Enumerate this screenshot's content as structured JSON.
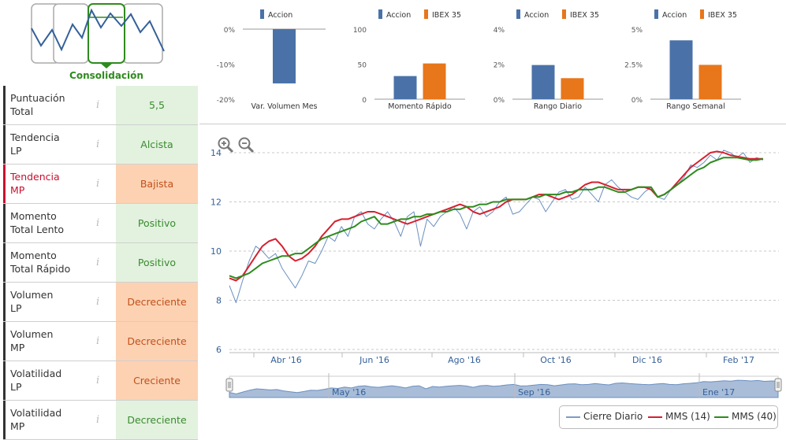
{
  "phase": {
    "label": "Consolidación"
  },
  "indicators": [
    {
      "name_line1": "Puntuación",
      "name_line2": "Total",
      "value": "5,5",
      "status": "green"
    },
    {
      "name_line1": "Tendencia",
      "name_line2": "LP",
      "value": "Alcista",
      "status": "green"
    },
    {
      "name_line1": "Tendencia",
      "name_line2": "MP",
      "value": "Bajista",
      "status": "orange"
    },
    {
      "name_line1": "Momento",
      "name_line2": "Total Lento",
      "value": "Positivo",
      "status": "green"
    },
    {
      "name_line1": "Momento",
      "name_line2": "Total Rápido",
      "value": "Positivo",
      "status": "green"
    },
    {
      "name_line1": "Volumen",
      "name_line2": "LP",
      "value": "Decreciente",
      "status": "orange"
    },
    {
      "name_line1": "Volumen",
      "name_line2": "MP",
      "value": "Decreciente",
      "status": "orange"
    },
    {
      "name_line1": "Volatilidad",
      "name_line2": "LP",
      "value": "Creciente",
      "status": "orange"
    },
    {
      "name_line1": "Volatilidad",
      "name_line2": "MP",
      "value": "Decreciente",
      "status": "green"
    }
  ],
  "info_glyph": "i",
  "colors": {
    "accion": "#4a72a8",
    "ibex": "#e8761a",
    "green": "#2e8b1e",
    "red": "#d62030",
    "line": "#4a72a8"
  },
  "chart_data": [
    {
      "type": "bar",
      "title": "Var. Volumen Mes",
      "legend": [
        "Accion"
      ],
      "yticks": [
        "0%",
        "-10%",
        "-20%"
      ],
      "ylim": [
        -20,
        0
      ],
      "series": [
        {
          "name": "Accion",
          "values": [
            -15.5
          ]
        }
      ]
    },
    {
      "type": "bar",
      "title": "Momento Rápido",
      "legend": [
        "Accion",
        "IBEX 35"
      ],
      "yticks": [
        "100",
        "50",
        "0"
      ],
      "ylim": [
        0,
        100
      ],
      "series": [
        {
          "name": "Accion",
          "values": [
            33
          ]
        },
        {
          "name": "IBEX 35",
          "values": [
            51
          ]
        }
      ]
    },
    {
      "type": "bar",
      "title": "Rango Diario",
      "legend": [
        "Accion",
        "IBEX 35"
      ],
      "yticks": [
        "4%",
        "2%",
        "0%"
      ],
      "ylim": [
        0,
        4
      ],
      "series": [
        {
          "name": "Accion",
          "values": [
            1.95
          ]
        },
        {
          "name": "IBEX 35",
          "values": [
            1.2
          ]
        }
      ]
    },
    {
      "type": "bar",
      "title": "Rango Semanal",
      "legend": [
        "Accion",
        "IBEX 35"
      ],
      "yticks": [
        "5%",
        "2.5%",
        "0%"
      ],
      "ylim": [
        0,
        5
      ],
      "series": [
        {
          "name": "Accion",
          "values": [
            4.2
          ]
        },
        {
          "name": "IBEX 35",
          "values": [
            2.45
          ]
        }
      ]
    },
    {
      "type": "line",
      "ylim": [
        6,
        14
      ],
      "yticks": [
        "14",
        "12",
        "10",
        "8",
        "6"
      ],
      "xticks": [
        "Abr '16",
        "Jun '16",
        "Ago '16",
        "Oct '16",
        "Dic '16",
        "Feb '17"
      ],
      "navigator_labels": [
        "May '16",
        "Sep '16",
        "Ene '17"
      ],
      "legend": [
        "Cierre Diario",
        "MMS (14)",
        "MMS (40)"
      ],
      "series": [
        {
          "name": "Cierre Diario",
          "values": [
            8.6,
            7.9,
            8.8,
            9.6,
            10.2,
            10.0,
            9.7,
            9.9,
            9.3,
            8.9,
            8.5,
            9.0,
            9.6,
            9.5,
            10.0,
            10.6,
            10.4,
            11.0,
            10.6,
            11.4,
            11.6,
            11.1,
            10.9,
            11.3,
            11.6,
            11.2,
            10.6,
            11.4,
            11.6,
            10.2,
            11.3,
            11.0,
            11.4,
            11.6,
            11.8,
            11.5,
            10.9,
            11.6,
            11.8,
            11.4,
            11.6,
            12.0,
            12.2,
            11.5,
            11.6,
            11.9,
            12.2,
            12.1,
            11.6,
            12.0,
            12.4,
            12.5,
            12.1,
            12.2,
            12.6,
            12.3,
            12.0,
            12.7,
            12.9,
            12.6,
            12.4,
            12.2,
            12.1,
            12.4,
            12.6,
            12.2,
            12.1,
            12.5,
            12.7,
            13.0,
            13.5,
            13.4,
            13.6,
            13.9,
            13.7,
            14.1,
            14.0,
            13.8,
            14.0,
            13.6,
            13.8,
            13.7
          ]
        },
        {
          "name": "MMS (14)",
          "values": [
            8.9,
            8.8,
            9.0,
            9.4,
            9.8,
            10.2,
            10.4,
            10.5,
            10.2,
            9.8,
            9.6,
            9.7,
            9.9,
            10.2,
            10.6,
            10.9,
            11.2,
            11.3,
            11.3,
            11.4,
            11.5,
            11.6,
            11.6,
            11.5,
            11.4,
            11.3,
            11.2,
            11.1,
            11.2,
            11.3,
            11.4,
            11.5,
            11.6,
            11.7,
            11.8,
            11.9,
            11.8,
            11.6,
            11.5,
            11.6,
            11.7,
            11.8,
            12.0,
            12.1,
            12.1,
            12.1,
            12.2,
            12.3,
            12.3,
            12.2,
            12.1,
            12.2,
            12.3,
            12.5,
            12.7,
            12.8,
            12.8,
            12.7,
            12.6,
            12.5,
            12.5,
            12.5,
            12.6,
            12.6,
            12.5,
            12.2,
            12.3,
            12.5,
            12.8,
            13.1,
            13.4,
            13.6,
            13.8,
            14.0,
            14.05,
            14.0,
            13.9,
            13.85,
            13.8,
            13.75,
            13.75,
            13.75
          ]
        },
        {
          "name": "MMS (40)",
          "values": [
            9.0,
            8.9,
            9.0,
            9.1,
            9.3,
            9.5,
            9.6,
            9.7,
            9.8,
            9.8,
            9.9,
            9.9,
            10.1,
            10.3,
            10.5,
            10.6,
            10.7,
            10.8,
            10.9,
            11.0,
            11.2,
            11.3,
            11.4,
            11.1,
            11.1,
            11.2,
            11.3,
            11.3,
            11.4,
            11.4,
            11.5,
            11.5,
            11.6,
            11.6,
            11.7,
            11.7,
            11.8,
            11.8,
            11.9,
            11.9,
            12.0,
            12.0,
            12.1,
            12.1,
            12.1,
            12.1,
            12.2,
            12.2,
            12.3,
            12.3,
            12.3,
            12.4,
            12.4,
            12.5,
            12.5,
            12.5,
            12.6,
            12.6,
            12.5,
            12.4,
            12.4,
            12.5,
            12.6,
            12.6,
            12.6,
            12.2,
            12.3,
            12.5,
            12.7,
            12.9,
            13.1,
            13.3,
            13.4,
            13.6,
            13.7,
            13.8,
            13.8,
            13.8,
            13.75,
            13.7,
            13.7,
            13.75
          ]
        }
      ]
    }
  ]
}
